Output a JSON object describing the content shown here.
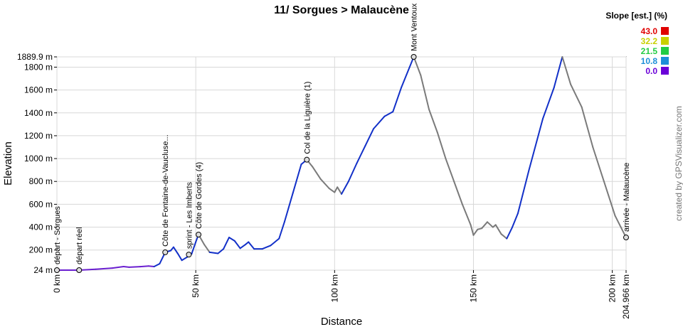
{
  "chart_data": {
    "type": "line",
    "title": "11/ Sorgues > Malaucène",
    "xlabel": "Distance",
    "ylabel": "Elevation",
    "xlim": [
      0,
      204.966
    ],
    "ylim": [
      24,
      1889.9
    ],
    "x_ticks": [
      {
        "value": 0,
        "label": "0 km"
      },
      {
        "value": 50,
        "label": "50 km"
      },
      {
        "value": 100,
        "label": "100 km"
      },
      {
        "value": 150,
        "label": "150 km"
      },
      {
        "value": 200,
        "label": "200 km"
      },
      {
        "value": 204.966,
        "label": "204.966 km"
      }
    ],
    "y_ticks": [
      {
        "value": 24,
        "label": "24 m"
      },
      {
        "value": 200,
        "label": "200 m"
      },
      {
        "value": 400,
        "label": "400 m"
      },
      {
        "value": 600,
        "label": "600 m"
      },
      {
        "value": 800,
        "label": "800 m"
      },
      {
        "value": 1000,
        "label": "1000 m"
      },
      {
        "value": 1200,
        "label": "1200 m"
      },
      {
        "value": 1400,
        "label": "1400 m"
      },
      {
        "value": 1600,
        "label": "1600 m"
      },
      {
        "value": 1800,
        "label": "1800 m"
      },
      {
        "value": 1889.9,
        "label": "1889.9 m"
      }
    ],
    "grid": true,
    "profile": [
      {
        "x": 0,
        "y": 24,
        "slope": "0.0"
      },
      {
        "x": 4,
        "y": 24,
        "slope": "0.0"
      },
      {
        "x": 8,
        "y": 24,
        "slope": "0.0"
      },
      {
        "x": 14,
        "y": 32,
        "slope": "0.0"
      },
      {
        "x": 20,
        "y": 42,
        "slope": "0.0"
      },
      {
        "x": 24,
        "y": 55,
        "slope": "0.0"
      },
      {
        "x": 26,
        "y": 50,
        "slope": "0.0"
      },
      {
        "x": 30,
        "y": 54,
        "slope": "0.0"
      },
      {
        "x": 33,
        "y": 60,
        "slope": "0.0"
      },
      {
        "x": 35,
        "y": 55,
        "slope": "0.0"
      },
      {
        "x": 37,
        "y": 80,
        "slope": "10.8"
      },
      {
        "x": 39,
        "y": 180,
        "slope": "10.8"
      },
      {
        "x": 41,
        "y": 195,
        "slope": "10.8"
      },
      {
        "x": 42,
        "y": 225,
        "slope": "10.8"
      },
      {
        "x": 43.5,
        "y": 170,
        "slope": "10.8"
      },
      {
        "x": 45,
        "y": 110,
        "slope": "10.8"
      },
      {
        "x": 47,
        "y": 140,
        "slope": "10.8"
      },
      {
        "x": 48.5,
        "y": 165,
        "slope": "10.8"
      },
      {
        "x": 50,
        "y": 270,
        "slope": "10.8"
      },
      {
        "x": 51,
        "y": 335,
        "slope": "10.8"
      },
      {
        "x": 53,
        "y": 250,
        "slope": "21.5"
      },
      {
        "x": 55,
        "y": 180,
        "slope": "21.5"
      },
      {
        "x": 58,
        "y": 170,
        "slope": "10.8"
      },
      {
        "x": 60,
        "y": 210,
        "slope": "10.8"
      },
      {
        "x": 62,
        "y": 310,
        "slope": "10.8"
      },
      {
        "x": 64,
        "y": 280,
        "slope": "10.8"
      },
      {
        "x": 66,
        "y": 215,
        "slope": "10.8"
      },
      {
        "x": 68,
        "y": 250,
        "slope": "10.8"
      },
      {
        "x": 69,
        "y": 270,
        "slope": "10.8"
      },
      {
        "x": 71,
        "y": 210,
        "slope": "10.8"
      },
      {
        "x": 74,
        "y": 210,
        "slope": "10.8"
      },
      {
        "x": 77,
        "y": 240,
        "slope": "10.8"
      },
      {
        "x": 80,
        "y": 300,
        "slope": "10.8"
      },
      {
        "x": 82,
        "y": 450,
        "slope": "10.8"
      },
      {
        "x": 85,
        "y": 700,
        "slope": "10.8"
      },
      {
        "x": 88,
        "y": 950,
        "slope": "10.8"
      },
      {
        "x": 90,
        "y": 990,
        "slope": "10.8"
      },
      {
        "x": 92,
        "y": 930,
        "slope": "21.5"
      },
      {
        "x": 95,
        "y": 820,
        "slope": "21.5"
      },
      {
        "x": 98,
        "y": 740,
        "slope": "21.5"
      },
      {
        "x": 100,
        "y": 705,
        "slope": "21.5"
      },
      {
        "x": 101,
        "y": 750,
        "slope": "21.5"
      },
      {
        "x": 102.5,
        "y": 690,
        "slope": "21.5"
      },
      {
        "x": 105,
        "y": 800,
        "slope": "10.8"
      },
      {
        "x": 108,
        "y": 960,
        "slope": "10.8"
      },
      {
        "x": 111,
        "y": 1110,
        "slope": "10.8"
      },
      {
        "x": 114,
        "y": 1260,
        "slope": "10.8"
      },
      {
        "x": 118,
        "y": 1370,
        "slope": "10.8"
      },
      {
        "x": 121,
        "y": 1410,
        "slope": "10.8"
      },
      {
        "x": 124,
        "y": 1620,
        "slope": "10.8"
      },
      {
        "x": 127,
        "y": 1800,
        "slope": "10.8"
      },
      {
        "x": 128.5,
        "y": 1889.9,
        "slope": "10.8"
      },
      {
        "x": 131,
        "y": 1730,
        "slope": "21.5"
      },
      {
        "x": 134,
        "y": 1430,
        "slope": "21.5"
      },
      {
        "x": 137,
        "y": 1230,
        "slope": "21.5"
      },
      {
        "x": 140,
        "y": 1000,
        "slope": "21.5"
      },
      {
        "x": 143,
        "y": 800,
        "slope": "21.5"
      },
      {
        "x": 146,
        "y": 600,
        "slope": "21.5"
      },
      {
        "x": 149,
        "y": 420,
        "slope": "21.5"
      },
      {
        "x": 150,
        "y": 330,
        "slope": "21.5"
      },
      {
        "x": 151.5,
        "y": 380,
        "slope": "21.5"
      },
      {
        "x": 153,
        "y": 390,
        "slope": "21.5"
      },
      {
        "x": 155,
        "y": 445,
        "slope": "21.5"
      },
      {
        "x": 157,
        "y": 400,
        "slope": "21.5"
      },
      {
        "x": 158,
        "y": 420,
        "slope": "21.5"
      },
      {
        "x": 160,
        "y": 340,
        "slope": "21.5"
      },
      {
        "x": 162,
        "y": 300,
        "slope": "21.5"
      },
      {
        "x": 164,
        "y": 400,
        "slope": "10.8"
      },
      {
        "x": 166,
        "y": 520,
        "slope": "10.8"
      },
      {
        "x": 170,
        "y": 900,
        "slope": "10.8"
      },
      {
        "x": 175,
        "y": 1350,
        "slope": "10.8"
      },
      {
        "x": 179,
        "y": 1620,
        "slope": "10.8"
      },
      {
        "x": 182,
        "y": 1889.9,
        "slope": "10.8"
      },
      {
        "x": 185,
        "y": 1650,
        "slope": "21.5"
      },
      {
        "x": 189,
        "y": 1450,
        "slope": "21.5"
      },
      {
        "x": 193,
        "y": 1100,
        "slope": "21.5"
      },
      {
        "x": 197,
        "y": 800,
        "slope": "21.5"
      },
      {
        "x": 201,
        "y": 500,
        "slope": "21.5"
      },
      {
        "x": 204.966,
        "y": 310,
        "slope": "21.5"
      }
    ],
    "waypoints": [
      {
        "x": 0,
        "y": 24,
        "label": "départ - Sorgues"
      },
      {
        "x": 8,
        "y": 24,
        "label": "départ réel"
      },
      {
        "x": 39,
        "y": 180,
        "label": "Côte de Fontaine-de-Vaucluse..."
      },
      {
        "x": 47.5,
        "y": 160,
        "label": "sprint - Les Imberts"
      },
      {
        "x": 51,
        "y": 335,
        "label": "Côte de Gordes (4)"
      },
      {
        "x": 90,
        "y": 990,
        "label": "Col de la Liguière (1)"
      },
      {
        "x": 128.5,
        "y": 1889.9,
        "label": "Mont Ventoux"
      },
      {
        "x": 204.966,
        "y": 310,
        "label": "arrivée - Malaucène"
      }
    ],
    "legend": {
      "title": "Slope [est.] (%)",
      "placement": "top-right",
      "entries": [
        {
          "label": "43.0",
          "color": "#e00000"
        },
        {
          "label": "32.2",
          "color": "#c8d000"
        },
        {
          "label": "21.5",
          "color": "#22cc44"
        },
        {
          "label": "10.8",
          "color": "#1d8fd8"
        },
        {
          "label": "0.0",
          "color": "#6a00d8"
        }
      ]
    },
    "segment_colors": {
      "0.0": "#6a1fd0",
      "10.8": "#1230c8",
      "21.5": "#7a7a7a"
    },
    "credit": "created by GPSVisualizer.com"
  }
}
